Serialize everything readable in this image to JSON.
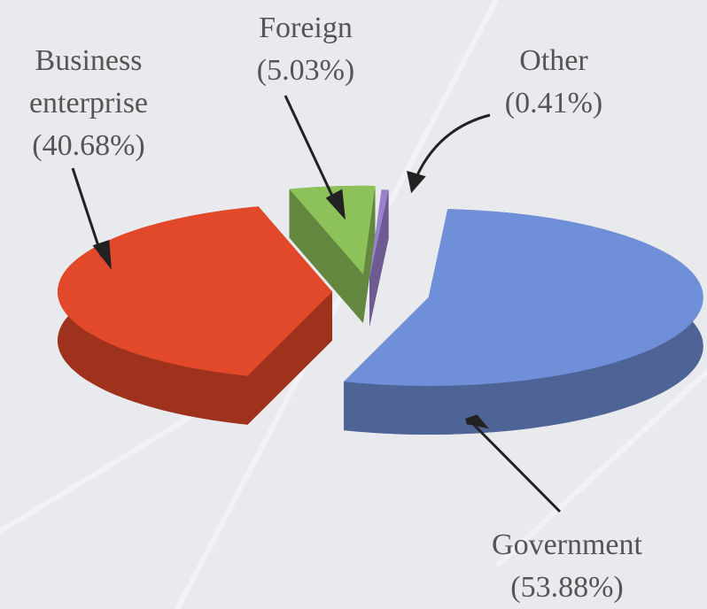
{
  "chart_data": {
    "type": "pie",
    "categories": [
      "Government",
      "Business enterprise",
      "Foreign",
      "Other"
    ],
    "values": [
      53.88,
      40.68,
      5.03,
      0.41
    ],
    "value_labels": [
      "(53.88%)",
      "(40.68%)",
      "(5.03%)",
      "(0.41%)"
    ],
    "colors": [
      "#6f8fd8",
      "#e2482a",
      "#8dc159",
      "#9b82cf"
    ]
  }
}
